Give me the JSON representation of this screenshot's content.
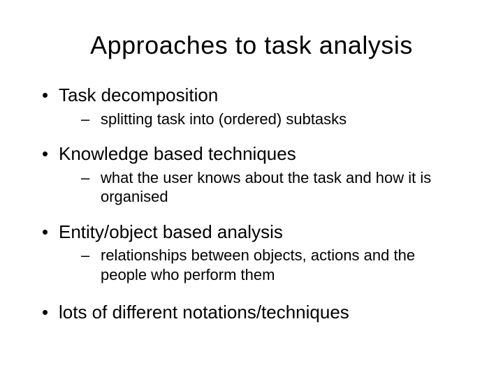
{
  "slide": {
    "title": "Approaches to task analysis",
    "title_fontsize": 36,
    "text_color": "#000000",
    "background_color": "#ffffff",
    "font_family": "Comic Sans MS",
    "bullets": [
      {
        "text": "Task decomposition",
        "sub": [
          "splitting task into (ordered) subtasks"
        ]
      },
      {
        "text": "Knowledge based techniques",
        "sub": [
          "what the user knows about the task and how it is organised"
        ]
      },
      {
        "text": "Entity/object  based analysis",
        "sub": [
          "relationships between objects, actions and the people who perform them"
        ]
      },
      {
        "text": "lots of different notations/techniques",
        "sub": []
      }
    ],
    "level1_fontsize": 26,
    "level2_fontsize": 22
  }
}
